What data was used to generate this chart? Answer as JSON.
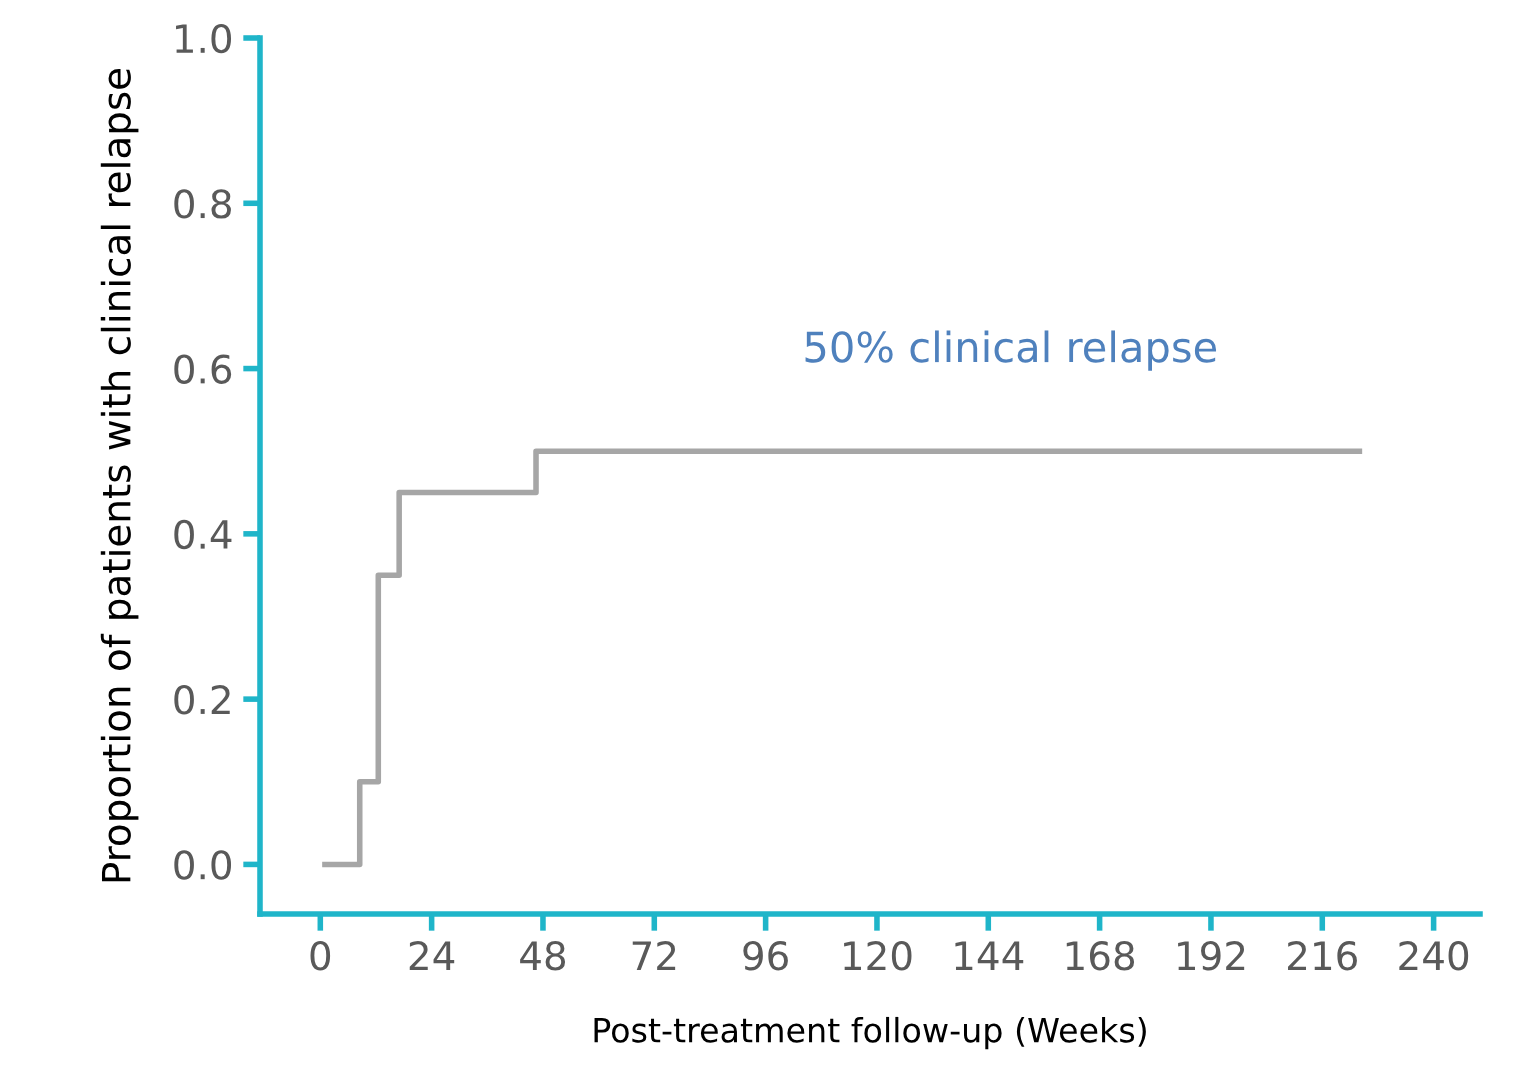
{
  "chart_data": {
    "type": "step",
    "xlabel": "Post-treatment follow-up (Weeks)",
    "ylabel": "Proportion of patients with clinical relapse",
    "annotations": [
      "50% clinical relapse"
    ],
    "series": [
      {
        "color": "#a6a6a6",
        "x": [
          1,
          8.5,
          12.5,
          17,
          46.5,
          224
        ],
        "values": [
          0,
          0.1,
          0.35,
          0.45,
          0.5,
          0.5
        ]
      }
    ],
    "xlim": [
      -13,
      250
    ],
    "xticks": [
      0,
      24,
      48,
      72,
      96,
      120,
      144,
      168,
      192,
      216,
      240
    ],
    "ylim": [
      -0.06,
      1.0
    ],
    "yticks": [
      {
        "value": 0,
        "label": "0.0"
      },
      {
        "value": 0.2,
        "label": "0.2"
      },
      {
        "value": 0.4,
        "label": "0.4"
      },
      {
        "value": 0.6,
        "label": "0.6"
      },
      {
        "value": 0.8,
        "label": "0.8"
      },
      {
        "value": 1.0,
        "label": "1.0"
      }
    ],
    "grid": false,
    "legend": false
  }
}
